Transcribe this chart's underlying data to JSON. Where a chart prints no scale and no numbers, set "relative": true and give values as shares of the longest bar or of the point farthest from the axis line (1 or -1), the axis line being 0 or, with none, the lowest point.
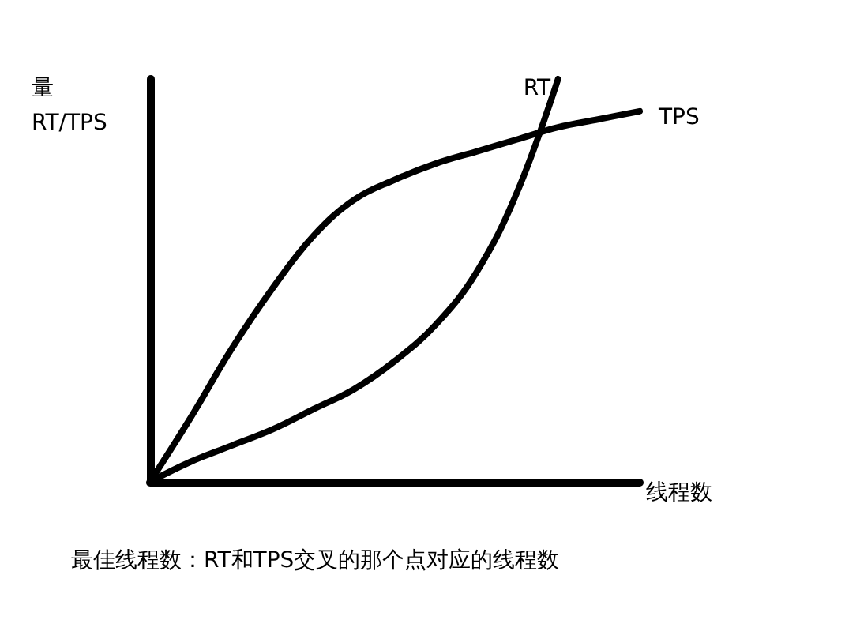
{
  "chart_data": {
    "type": "line",
    "relative": true,
    "ylabel": "量\nRT/TPS",
    "xlabel": "线程数",
    "annotations": [
      "最佳线程数：RT和TPS交叉的那个点对应的线程数"
    ],
    "categories": [
      null,
      null,
      null,
      null,
      null,
      null,
      null,
      null,
      null,
      null,
      null,
      null,
      null
    ],
    "legend": false,
    "grid": false,
    "marker": "none",
    "line_style": "solid",
    "series": [
      {
        "name": "RT",
        "color": "#000000",
        "values": [
          0,
          0.05,
          0.09,
          0.13,
          0.18,
          0.23,
          0.3,
          0.39,
          0.52,
          0.72,
          1.0,
          null,
          null
        ]
      },
      {
        "name": "TPS",
        "color": "#000000",
        "values": [
          0,
          0.16,
          0.33,
          0.48,
          0.61,
          0.7,
          0.75,
          0.79,
          0.82,
          0.85,
          0.88,
          0.9,
          0.92
        ]
      }
    ]
  }
}
